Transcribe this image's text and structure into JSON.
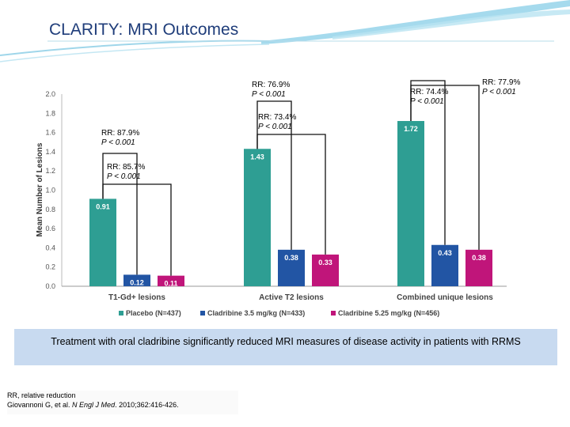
{
  "header": {
    "title": "CLARITY: MRI Outcomes"
  },
  "chart_data": {
    "type": "bar",
    "ylabel": "Mean Number of Lesions",
    "ylim": [
      0,
      2.0
    ],
    "yticks": [
      "0.0",
      "0.2",
      "0.4",
      "0.6",
      "0.8",
      "1.0",
      "1.2",
      "1.4",
      "1.6",
      "1.8",
      "2.0"
    ],
    "categories": [
      "T1-Gd+ lesions",
      "Active T2 lesions",
      "Combined unique lesions"
    ],
    "series": [
      {
        "name": "Placebo (N=437)",
        "color": "#2e9e93",
        "values": [
          0.91,
          1.43,
          1.72
        ],
        "labels": [
          "0.91",
          "1.43",
          "1.72"
        ]
      },
      {
        "name": "Cladribine 3.5 mg/kg (N=433)",
        "color": "#2255a4",
        "values": [
          0.12,
          0.38,
          0.43
        ],
        "labels": [
          "0.12",
          "0.38",
          "0.43"
        ]
      },
      {
        "name": "Cladribine 5.25 mg/kg (N=456)",
        "color": "#c0157a",
        "values": [
          0.11,
          0.33,
          0.38
        ],
        "labels": [
          "0.11",
          "0.33",
          "0.38"
        ]
      }
    ],
    "annotations": [
      {
        "rr": "RR: 87.9%",
        "p": "P < 0.001"
      },
      {
        "rr": "RR: 85.7%",
        "p": "P < 0.001"
      },
      {
        "rr": "RR: 76.9%",
        "p": "P < 0.001"
      },
      {
        "rr": "RR: 73.4%",
        "p": "P < 0.001"
      },
      {
        "rr": "RR: 74.4%",
        "p": "P < 0.001"
      },
      {
        "rr": "RR: 77.9%",
        "p": "P < 0.001"
      }
    ]
  },
  "caption": "Treatment with oral cladribine significantly reduced MRI measures of disease activity in patients with RRMS",
  "footnote": {
    "line1": "RR, relative reduction",
    "authors": "Giovannoni G, et al. ",
    "journal": "N Engl J Med",
    "rest": ". 2010;362:416-426."
  }
}
